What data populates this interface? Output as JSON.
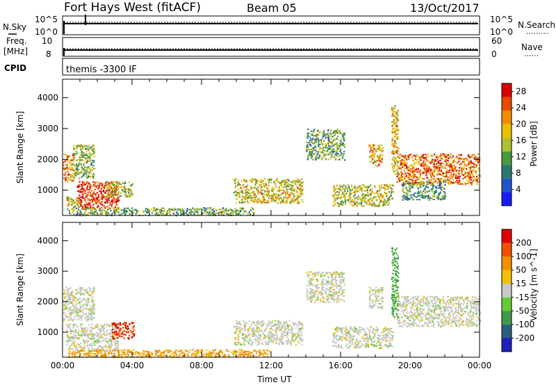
{
  "header": {
    "title": "Fort Hays West (fitACF)",
    "beam": "Beam 05",
    "date": "13/Oct/2017"
  },
  "status_panels": {
    "nsky_label": "N.Sky",
    "nsearch_label": "N.Search",
    "nsky_ticks": [
      "10^5",
      "10^0"
    ],
    "nsearch_ticks": [
      "10^5",
      "10^0"
    ],
    "freq_label_1": "Freq.",
    "freq_label_2": "[MHz]",
    "freq_ticks": [
      "10",
      "8"
    ],
    "nave_label": "Nave",
    "nave_ticks": [
      "60",
      "0"
    ],
    "cpid_label": "CPID",
    "cpid_text": "themis -3300 IF"
  },
  "chart_data": [
    {
      "type": "heatmap",
      "title": "",
      "xlabel": "",
      "ylabel": "Slant Range [km]",
      "y_ticks": [
        1000,
        2000,
        3000,
        4000
      ],
      "ylim": [
        180,
        4600
      ],
      "colorbar": {
        "label": "Power [dB]",
        "ticks": [
          4,
          8,
          12,
          16,
          20,
          24,
          28
        ],
        "range": [
          0,
          30
        ],
        "colors": [
          "#1a1aff",
          "#2255cc",
          "#2a7a70",
          "#4a9a40",
          "#b0c030",
          "#e8c000",
          "#f08c00",
          "#e84800",
          "#dd0000"
        ]
      },
      "regions": [
        {
          "t": [
            0.0,
            0.6
          ],
          "r": [
            1300,
            2200
          ],
          "level": 22
        },
        {
          "t": [
            0.6,
            1.8
          ],
          "r": [
            1400,
            2500
          ],
          "level": 14
        },
        {
          "t": [
            0.2,
            1.0
          ],
          "r": [
            400,
            800
          ],
          "level": 16
        },
        {
          "t": [
            0.8,
            3.2
          ],
          "r": [
            400,
            1300
          ],
          "level": 27
        },
        {
          "t": [
            2.5,
            4.0
          ],
          "r": [
            800,
            1300
          ],
          "level": 16
        },
        {
          "t": [
            0.3,
            11.0
          ],
          "r": [
            200,
            450
          ],
          "level": 12
        },
        {
          "t": [
            9.8,
            13.8
          ],
          "r": [
            600,
            1400
          ],
          "level": 17
        },
        {
          "t": [
            14.0,
            16.2
          ],
          "r": [
            2000,
            3000
          ],
          "level": 12
        },
        {
          "t": [
            15.5,
            19.0
          ],
          "r": [
            500,
            1200
          ],
          "level": 16
        },
        {
          "t": [
            17.6,
            18.4
          ],
          "r": [
            1800,
            2500
          ],
          "level": 20
        },
        {
          "t": [
            19.2,
            24.0
          ],
          "r": [
            1200,
            2200
          ],
          "level": 23
        },
        {
          "t": [
            19.5,
            22.0
          ],
          "r": [
            700,
            1300
          ],
          "level": 10
        },
        {
          "t": [
            18.9,
            19.3
          ],
          "r": [
            1500,
            3800
          ],
          "level": 18
        }
      ]
    },
    {
      "type": "heatmap",
      "title": "",
      "xlabel": "Time UT",
      "ylabel": "Slant Range [km]",
      "x_ticks": [
        "00:00",
        "04:00",
        "08:00",
        "12:00",
        "16:00",
        "20:00",
        "00:00"
      ],
      "y_ticks": [
        1000,
        2000,
        3000,
        4000
      ],
      "ylim": [
        180,
        4600
      ],
      "colorbar": {
        "label": "Velocity [m s^-1]",
        "ticks": [
          200,
          100,
          50,
          15,
          -15,
          -50,
          -100,
          -200
        ],
        "colors": [
          "#2020c0",
          "#2a6080",
          "#3f9a4a",
          "#66cc33",
          "#c8c8c8",
          "#f0c000",
          "#f09000",
          "#f05000",
          "#e00000"
        ]
      },
      "regions": [
        {
          "t": [
            0.0,
            1.8
          ],
          "r": [
            1400,
            2500
          ],
          "v": 0
        },
        {
          "t": [
            0.2,
            3.2
          ],
          "r": [
            400,
            1300
          ],
          "v": 0
        },
        {
          "t": [
            2.8,
            4.1
          ],
          "r": [
            800,
            1350
          ],
          "v": -150
        },
        {
          "t": [
            0.3,
            12.0
          ],
          "r": [
            200,
            450
          ],
          "v": -40
        },
        {
          "t": [
            9.8,
            13.8
          ],
          "r": [
            600,
            1400
          ],
          "v": 0
        },
        {
          "t": [
            14.0,
            16.2
          ],
          "r": [
            2000,
            3000
          ],
          "v": 0
        },
        {
          "t": [
            15.5,
            19.0
          ],
          "r": [
            500,
            1200
          ],
          "v": 0
        },
        {
          "t": [
            17.6,
            18.4
          ],
          "r": [
            1800,
            2500
          ],
          "v": 0
        },
        {
          "t": [
            19.2,
            24.0
          ],
          "r": [
            1200,
            2200
          ],
          "v": 0
        },
        {
          "t": [
            18.9,
            19.3
          ],
          "r": [
            1500,
            3800
          ],
          "v": 40
        }
      ]
    }
  ]
}
